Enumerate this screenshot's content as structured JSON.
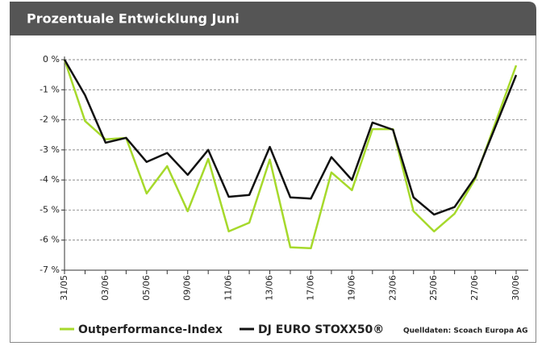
{
  "chart_data": {
    "type": "line",
    "title": "Prozentuale Entwicklung Juni",
    "source": "Quelldaten: Scoach Europa AG",
    "categories": [
      "31/05",
      null,
      "03/06",
      null,
      "05/06",
      null,
      "09/06",
      null,
      "11/06",
      null,
      "13/06",
      null,
      "17/06",
      null,
      "19/06",
      null,
      "23/06",
      null,
      "25/06",
      null,
      "27/06",
      null,
      "30/06"
    ],
    "series": [
      {
        "name": "Outperformance-Index",
        "color": "#a6d92b",
        "values": [
          0,
          -2.04,
          -2.65,
          -2.6,
          -4.45,
          -3.54,
          -5.04,
          -3.3,
          -5.71,
          -5.42,
          -3.32,
          -6.24,
          -6.27,
          -3.75,
          -4.34,
          -2.31,
          -2.31,
          -5.04,
          -5.71,
          -5.12,
          -3.97,
          -2.08,
          -0.19
        ]
      },
      {
        "name": "DJ EURO STOXX50®",
        "color": "#111111",
        "values": [
          0,
          -1.18,
          -2.76,
          -2.6,
          -3.4,
          -3.1,
          -3.83,
          -3.0,
          -4.56,
          -4.5,
          -2.9,
          -4.58,
          -4.62,
          -3.24,
          -4.0,
          -2.09,
          -2.33,
          -4.58,
          -5.15,
          -4.9,
          -3.91,
          -2.21,
          -0.51
        ]
      }
    ],
    "ylim": [
      -7,
      0
    ],
    "yticks": [
      {
        "value": 0,
        "label": "0 %"
      },
      {
        "value": -1,
        "label": "-1 %"
      },
      {
        "value": -2,
        "label": "-2 %"
      },
      {
        "value": -3,
        "label": "-3 %"
      },
      {
        "value": -4,
        "label": "-4 %"
      },
      {
        "value": -5,
        "label": "-5 %"
      },
      {
        "value": -6,
        "label": "-6 %"
      },
      {
        "value": -7,
        "label": "-7 %"
      }
    ],
    "grid": true
  }
}
